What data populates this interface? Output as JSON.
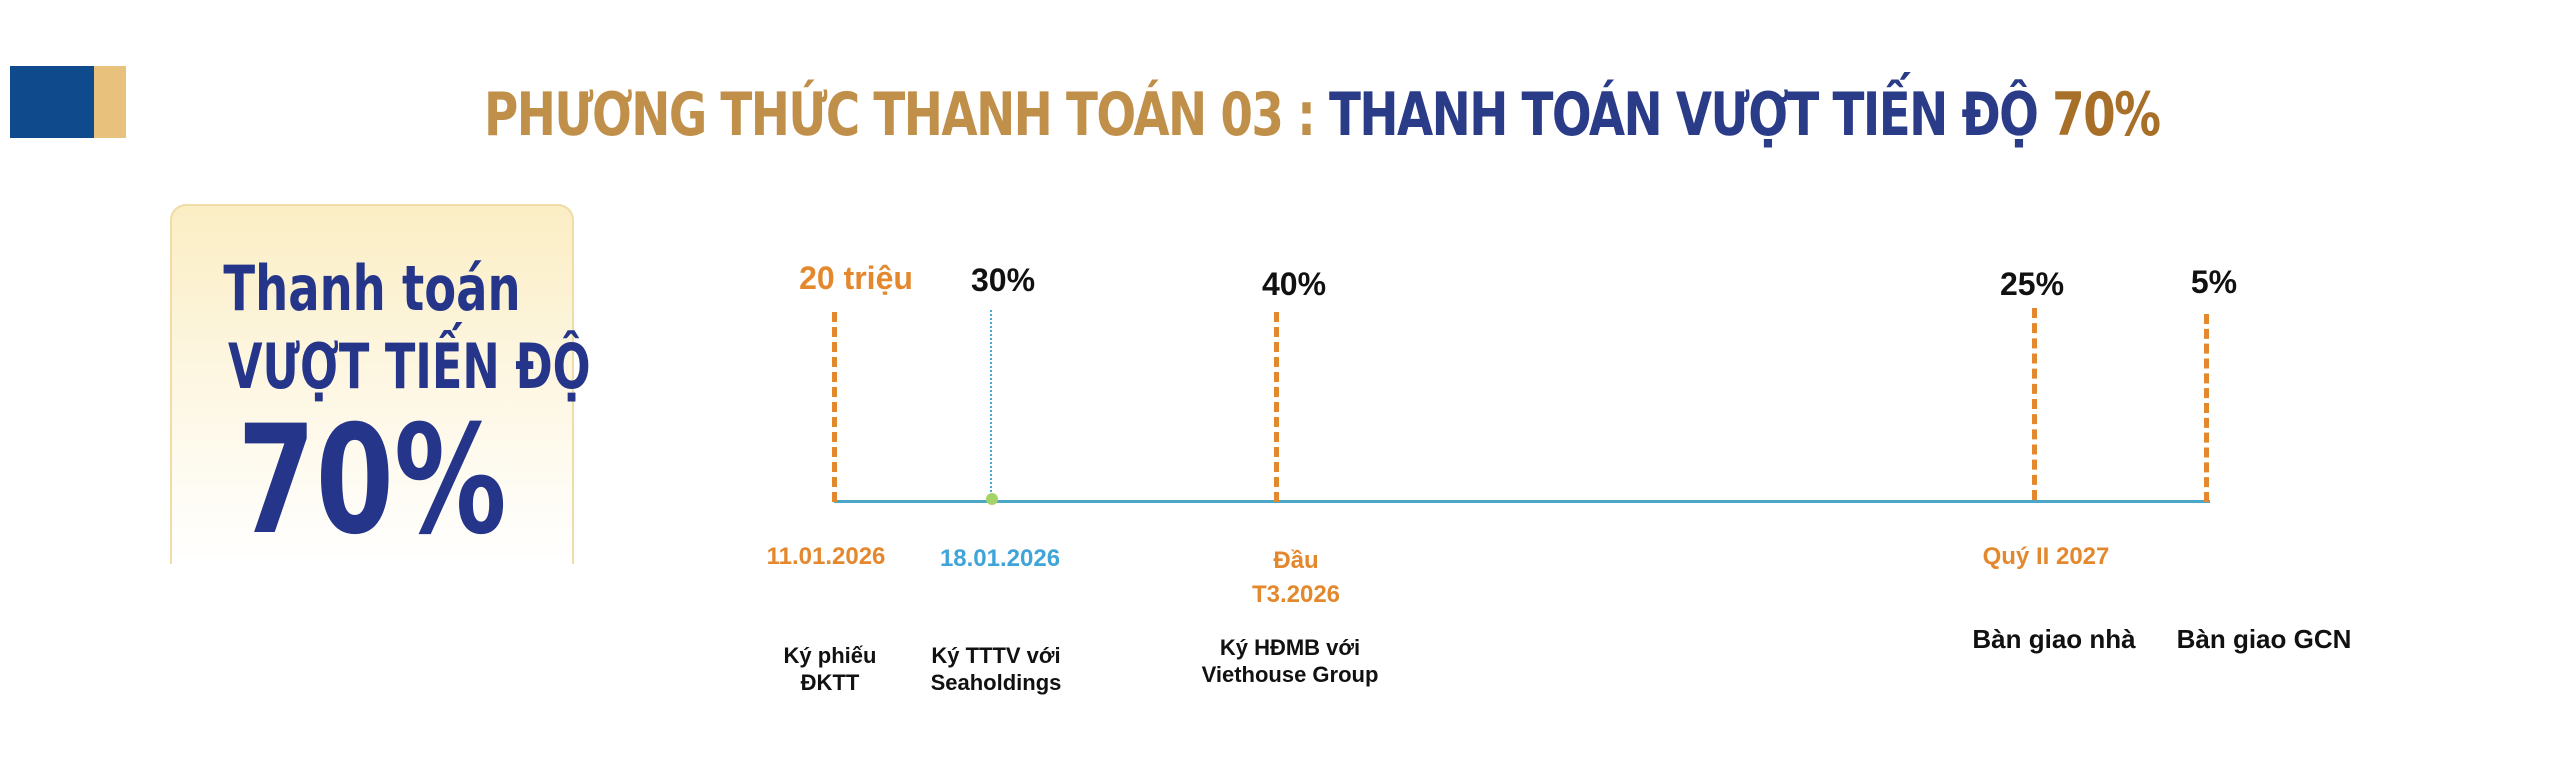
{
  "header": {
    "title_part1": "PHƯƠNG THỨC THANH TOÁN 03 : ",
    "title_part2": "THANH TOÁN VƯỢT TIẾN ĐỘ ",
    "title_part3": "70%"
  },
  "highlight": {
    "line1": "Thanh toán",
    "line2": "VƯỢT TIẾN ĐỘ",
    "percent": "70%"
  },
  "milestones": [
    {
      "amount": "20 triệu",
      "date": "11.01.2026",
      "desc_line1": "Ký phiếu",
      "desc_line2": "ĐKTT"
    },
    {
      "amount": "30%",
      "date": "18.01.2026",
      "desc_line1": "Ký TTTV với",
      "desc_line2": "Seaholdings"
    },
    {
      "amount": "40%",
      "date_line1": "Đầu",
      "date_line2": "T3.2026",
      "desc_line1": "Ký HĐMB với",
      "desc_line2": "Viethouse Group"
    },
    {
      "amount": "25%",
      "date": "Quý II 2027",
      "desc_line1": "Bàn giao nhà"
    },
    {
      "amount": "5%",
      "desc_line1": "Bàn giao GCN"
    }
  ],
  "colors": {
    "navy": "#2a3b87",
    "gold": "#c0904a",
    "orange": "#e4882d",
    "blue": "#3fa4d8",
    "line": "#4aa7c8"
  }
}
